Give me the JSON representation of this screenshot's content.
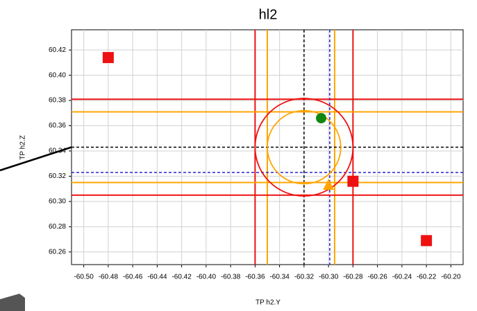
{
  "chart_data": {
    "type": "scatter",
    "title": "hl2",
    "x_label": "TP h2.Y",
    "y_label": "TP h2.Z",
    "xlim": [
      -60.51,
      -60.19
    ],
    "ylim": [
      60.25,
      60.436
    ],
    "xticks": [
      {
        "value": -60.5,
        "label": "-60.50"
      },
      {
        "value": -60.48,
        "label": "-60.48"
      },
      {
        "value": -60.46,
        "label": "-60.46"
      },
      {
        "value": -60.44,
        "label": "-60.44"
      },
      {
        "value": -60.42,
        "label": "-60.42"
      },
      {
        "value": -60.4,
        "label": "-60.40"
      },
      {
        "value": -60.38,
        "label": "-60.38"
      },
      {
        "value": -60.36,
        "label": "-60.36"
      },
      {
        "value": -60.34,
        "label": "-60.34"
      },
      {
        "value": -60.32,
        "label": "-60.32"
      },
      {
        "value": -60.3,
        "label": "-60.30"
      },
      {
        "value": -60.28,
        "label": "-60.28"
      },
      {
        "value": -60.26,
        "label": "-60.26"
      },
      {
        "value": -60.24,
        "label": "-60.24"
      },
      {
        "value": -60.22,
        "label": "-60.22"
      },
      {
        "value": -60.2,
        "label": "-60.20"
      }
    ],
    "yticks": [
      {
        "value": 60.26,
        "label": "60.26"
      },
      {
        "value": 60.28,
        "label": "60.28"
      },
      {
        "value": 60.3,
        "label": "60.30"
      },
      {
        "value": 60.32,
        "label": "60.32"
      },
      {
        "value": 60.34,
        "label": "60.34"
      },
      {
        "value": 60.36,
        "label": "60.36"
      },
      {
        "value": 60.38,
        "label": "60.38"
      },
      {
        "value": 60.4,
        "label": "60.40"
      },
      {
        "value": 60.42,
        "label": "60.42"
      }
    ],
    "grid": true,
    "series": [
      {
        "color": "#ee1111",
        "marker": "square",
        "x": [
          -60.48,
          -60.28,
          -60.22
        ],
        "values": [
          60.414,
          60.316,
          60.269
        ]
      },
      {
        "color": "#118811",
        "marker": "circle",
        "x": [
          -60.306
        ],
        "values": [
          60.366
        ]
      },
      {
        "color": "#ffa500",
        "marker": "triangle",
        "x": [
          -60.3
        ],
        "values": [
          60.313
        ]
      }
    ],
    "vlines": [
      {
        "x": -60.36,
        "color": "#ee1111",
        "dash": false
      },
      {
        "x": -60.28,
        "color": "#ee1111",
        "dash": false
      },
      {
        "x": -60.35,
        "color": "#ffa500",
        "dash": false
      },
      {
        "x": -60.295,
        "color": "#ffa500",
        "dash": false
      },
      {
        "x": -60.32,
        "color": "#000000",
        "dash": true
      },
      {
        "x": -60.299,
        "color": "#2222cc",
        "dash": true
      }
    ],
    "hlines": [
      {
        "y": 60.381,
        "color": "#ee1111",
        "dash": false
      },
      {
        "y": 60.305,
        "color": "#ee1111",
        "dash": false
      },
      {
        "y": 60.371,
        "color": "#ffa500",
        "dash": false
      },
      {
        "y": 60.315,
        "color": "#ffa500",
        "dash": false
      },
      {
        "y": 60.343,
        "color": "#000000",
        "dash": true
      },
      {
        "y": 60.323,
        "color": "#2222cc",
        "dash": true
      }
    ],
    "circles": [
      {
        "x": -60.32,
        "y": 60.343,
        "r": 0.04,
        "color": "#ee1111"
      },
      {
        "x": -60.32,
        "y": 60.343,
        "r": 0.03,
        "color": "#ffa500"
      }
    ]
  }
}
